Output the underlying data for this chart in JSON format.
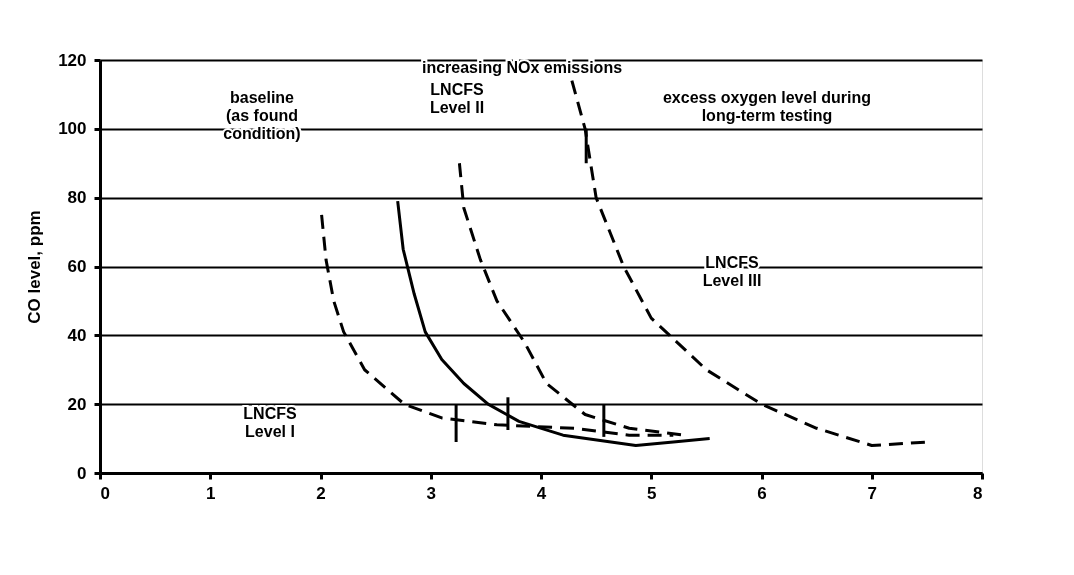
{
  "chart_data": {
    "type": "line",
    "ylabel": "CO level, ppm",
    "xlim": [
      0,
      8
    ],
    "xticks": [
      0,
      1,
      2,
      3,
      4,
      5,
      6,
      7,
      8
    ],
    "ylim": [
      0,
      120
    ],
    "yticks": [
      0,
      20,
      40,
      60,
      80,
      100,
      120
    ],
    "grid": "y",
    "marker": "none",
    "series": [
      {
        "color": "#000000",
        "line_style": "solid",
        "x": [
          2.7,
          2.75,
          2.85,
          2.95,
          3.1,
          3.3,
          3.52,
          3.8,
          4.2,
          4.86,
          5.2,
          5.53
        ],
        "values": [
          79,
          65,
          52,
          41,
          33,
          26,
          20,
          15,
          11,
          8,
          9,
          10
        ]
      },
      {
        "color": "#000000",
        "line_style": "dashed",
        "x": [
          2.01,
          2.05,
          2.12,
          2.21,
          2.4,
          2.76,
          3.1,
          3.6,
          4.3,
          4.8,
          5.2
        ],
        "values": [
          75,
          62,
          50,
          41,
          30,
          20,
          16,
          14,
          13,
          11,
          11
        ]
      },
      {
        "color": "#000000",
        "line_style": "dashed",
        "x": [
          3.26,
          3.3,
          3.45,
          3.6,
          3.85,
          4.05,
          4.4,
          4.8,
          5.3
        ],
        "values": [
          90,
          77,
          62,
          50,
          38,
          26,
          17,
          13,
          11
        ]
      },
      {
        "color": "#000000",
        "line_style": "dashed",
        "x": [
          4.28,
          4.4,
          4.5,
          4.75,
          5.0,
          5.5,
          6.0,
          6.5,
          7.0,
          7.5
        ],
        "values": [
          114,
          100,
          80,
          60,
          45,
          30,
          20,
          13,
          8,
          9
        ]
      },
      {
        "color": "#000000",
        "line_style": "solid",
        "x": [
          3.23,
          3.23
        ],
        "values": [
          9,
          20
        ]
      },
      {
        "color": "#000000",
        "line_style": "solid",
        "x": [
          3.7,
          3.7
        ],
        "values": [
          12.5,
          22
        ]
      },
      {
        "color": "#000000",
        "line_style": "solid",
        "x": [
          4.57,
          4.57
        ],
        "values": [
          10.5,
          20
        ]
      },
      {
        "color": "#000000",
        "line_style": "solid",
        "x": [
          4.41,
          4.41
        ],
        "values": [
          90,
          100
        ]
      }
    ],
    "annotations": [
      "increasing NOx emissions",
      "baseline\n(as found\ncondition)",
      "LNCFS\nLevel II",
      "excess oxygen level during\nlong-term testing",
      "LNCFS\nLevel III",
      "LNCFS\nLevel I"
    ]
  }
}
